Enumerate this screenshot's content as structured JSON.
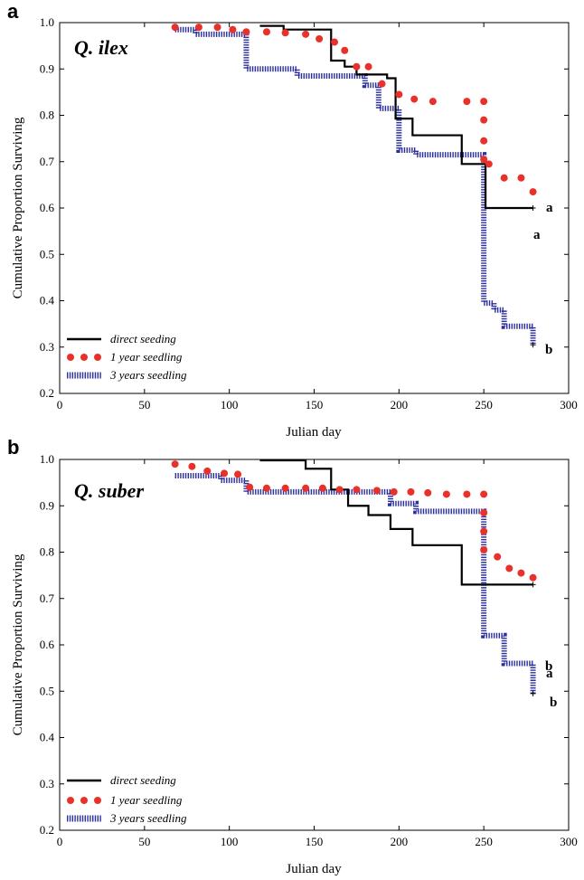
{
  "chart_data": [
    {
      "type": "line",
      "panel_label": "a",
      "species": "Q. ilex",
      "xlabel": "Julian day",
      "ylabel": "Cumulative Proportion Surviving",
      "xlim": [
        0,
        300
      ],
      "ylim": [
        0.2,
        1.0
      ],
      "xticks": [
        "0",
        "50",
        "100",
        "150",
        "200",
        "250",
        "300"
      ],
      "yticks": [
        "0.2",
        "0.3",
        "0.4",
        "0.5",
        "0.6",
        "0.7",
        "0.8",
        "0.9",
        "1.0"
      ],
      "legend_position": "bottom-left",
      "series": [
        {
          "name": "direct seeding",
          "style": "solid",
          "color": "#000000",
          "x": [
            118,
            132,
            160,
            168,
            175,
            193,
            198,
            208,
            237,
            251,
            279
          ],
          "y": [
            0.993,
            0.985,
            0.918,
            0.905,
            0.888,
            0.88,
            0.793,
            0.757,
            0.695,
            0.6,
            0.6
          ]
        },
        {
          "name": "1 year seedling",
          "style": "dotted-red",
          "color": "#e8312a",
          "x": [
            68,
            82,
            93,
            102,
            110,
            122,
            133,
            145,
            153,
            162,
            168,
            175,
            182,
            190,
            200,
            209,
            220,
            240,
            250,
            250,
            250,
            250,
            253,
            262,
            272,
            279
          ],
          "y": [
            0.99,
            0.99,
            0.99,
            0.985,
            0.98,
            0.98,
            0.978,
            0.975,
            0.965,
            0.958,
            0.94,
            0.905,
            0.905,
            0.868,
            0.845,
            0.835,
            0.83,
            0.83,
            0.83,
            0.79,
            0.745,
            0.705,
            0.695,
            0.665,
            0.665,
            0.635
          ]
        },
        {
          "name": "3 years seedling",
          "style": "dashed-blue",
          "color": "#2b2f9e",
          "x": [
            68,
            80,
            110,
            140,
            180,
            188,
            200,
            210,
            250,
            256,
            262,
            279
          ],
          "y": [
            0.985,
            0.975,
            0.9,
            0.885,
            0.865,
            0.815,
            0.725,
            0.715,
            0.395,
            0.38,
            0.345,
            0.305
          ]
        }
      ],
      "group_labels": [
        {
          "text": "a",
          "series": "1 year seedling"
        },
        {
          "text": "a",
          "series": "direct seeding"
        },
        {
          "text": "b",
          "series": "3 years seedling"
        }
      ]
    },
    {
      "type": "line",
      "panel_label": "b",
      "species": "Q. suber",
      "xlabel": "Julian day",
      "ylabel": "Cumulative Proportion Surviving",
      "xlim": [
        0,
        300
      ],
      "ylim": [
        0.2,
        1.0
      ],
      "xticks": [
        "0",
        "50",
        "100",
        "150",
        "200",
        "250",
        "300"
      ],
      "yticks": [
        "0.2",
        "0.3",
        "0.4",
        "0.5",
        "0.6",
        "0.7",
        "0.8",
        "0.9",
        "1.0"
      ],
      "legend_position": "bottom-left",
      "series": [
        {
          "name": "direct seeding",
          "style": "solid",
          "color": "#000000",
          "x": [
            118,
            145,
            160,
            170,
            182,
            195,
            208,
            237,
            251,
            279
          ],
          "y": [
            0.998,
            0.98,
            0.935,
            0.9,
            0.88,
            0.85,
            0.815,
            0.73,
            0.73,
            0.73
          ]
        },
        {
          "name": "1 year seedling",
          "style": "dotted-red",
          "color": "#e8312a",
          "x": [
            68,
            78,
            87,
            97,
            105,
            112,
            122,
            133,
            145,
            155,
            165,
            175,
            187,
            197,
            207,
            217,
            228,
            240,
            250,
            250,
            250,
            250,
            258,
            265,
            272,
            279
          ],
          "y": [
            0.99,
            0.985,
            0.975,
            0.97,
            0.968,
            0.94,
            0.938,
            0.938,
            0.938,
            0.938,
            0.935,
            0.935,
            0.933,
            0.93,
            0.93,
            0.928,
            0.925,
            0.925,
            0.925,
            0.885,
            0.845,
            0.805,
            0.79,
            0.765,
            0.755,
            0.745
          ]
        },
        {
          "name": "3 years seedling",
          "style": "dashed-blue",
          "color": "#2b2f9e",
          "x": [
            68,
            95,
            110,
            195,
            210,
            250,
            262,
            279
          ],
          "y": [
            0.965,
            0.955,
            0.93,
            0.905,
            0.888,
            0.62,
            0.56,
            0.495
          ]
        }
      ],
      "group_labels": [
        {
          "text": "a",
          "series": "1 year seedling"
        },
        {
          "text": "b",
          "series": "3 years seedling"
        },
        {
          "text": "b",
          "series": "direct seeding"
        }
      ]
    }
  ]
}
